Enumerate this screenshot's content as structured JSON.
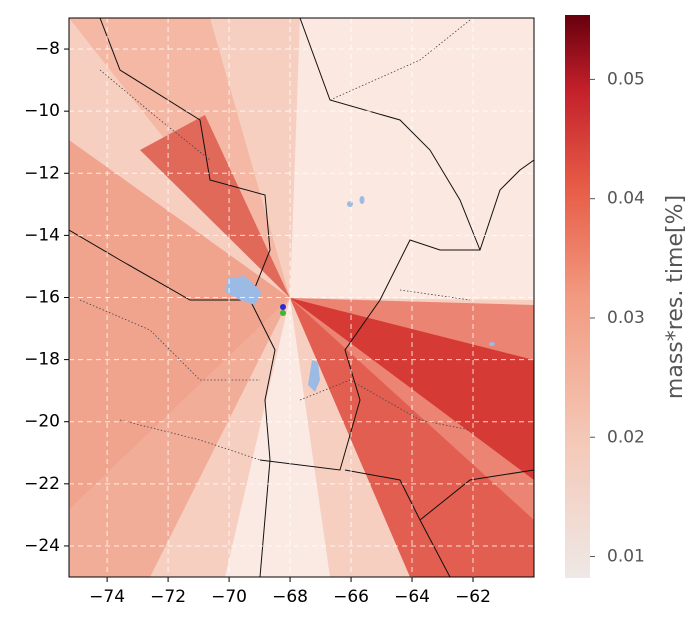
{
  "chart_data": {
    "type": "map",
    "xlim": [
      -75.25,
      -60
    ],
    "ylim": [
      -25,
      -7
    ],
    "xticks": [
      {
        "value": -74,
        "label": "−74"
      },
      {
        "value": -72,
        "label": "−72"
      },
      {
        "value": -70,
        "label": "−70"
      },
      {
        "value": -68,
        "label": "−68"
      },
      {
        "value": -66,
        "label": "−66"
      },
      {
        "value": -64,
        "label": "−64"
      },
      {
        "value": -62,
        "label": "−62"
      }
    ],
    "yticks": [
      {
        "value": -8,
        "label": "−8"
      },
      {
        "value": -10,
        "label": "−10"
      },
      {
        "value": -12,
        "label": "−12"
      },
      {
        "value": -14,
        "label": "−14"
      },
      {
        "value": -16,
        "label": "−16"
      },
      {
        "value": -18,
        "label": "−18"
      },
      {
        "value": -20,
        "label": "−20"
      },
      {
        "value": -22,
        "label": "−22"
      },
      {
        "value": -24,
        "label": "−24"
      }
    ],
    "grid": true,
    "colorbar": {
      "label": "mass*res. time[%]",
      "lim": [
        0.0082,
        0.0554
      ],
      "ticks": [
        0.01,
        0.02,
        0.03,
        0.04,
        0.05
      ]
    }
  }
}
